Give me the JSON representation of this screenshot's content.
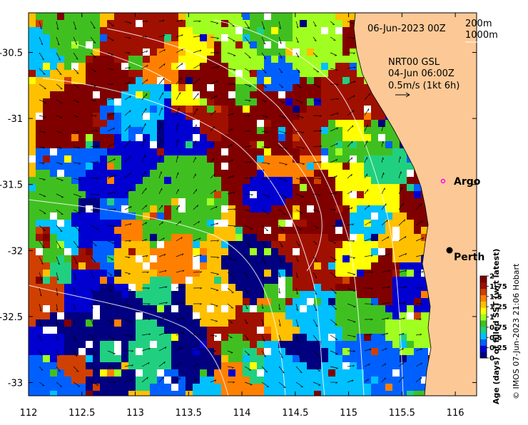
{
  "map": {
    "date_label": "06-Jun-2023 00Z",
    "current_source": "NRT00 GSL",
    "current_time": "04-Jun 06:00Z",
    "vector_scale_label": "0.5m/s (1kt 6h)",
    "bathymetry_labels": [
      "200m",
      "1000m"
    ],
    "lon_range": [
      112,
      116.2
    ],
    "lat_range": [
      -30.2,
      -33.1
    ],
    "lon_ticks": [
      "112",
      "112.5",
      "113",
      "113.5",
      "114",
      "114.5",
      "115",
      "115.5",
      "116"
    ],
    "lat_ticks": [
      "-30.5",
      "-31",
      "-31.5",
      "-32",
      "-32.5",
      "-33"
    ],
    "places": [
      {
        "name": "Argo",
        "lon": 115.85,
        "lat": -31.42,
        "marker": "magenta-ring"
      },
      {
        "name": "Perth",
        "lon": 115.86,
        "lat": -31.95,
        "marker": "black-dot"
      }
    ]
  },
  "colorbar": {
    "title": "Age (days) of filled SST (wrt latest)",
    "ticks": [
      "2",
      "1.75",
      "1.5",
      "1.25",
      "1",
      "0.75",
      "0.5",
      "0.25",
      "0"
    ],
    "colors": [
      "#000080",
      "#0000d0",
      "#0060ff",
      "#00c0ff",
      "#20d080",
      "#40c020",
      "#a0ff20",
      "#ffff00",
      "#ffc000",
      "#ff8000",
      "#d04000",
      "#a01000",
      "#800000"
    ]
  },
  "credit": "© IMOS 07-Jun-2023 21:06 Hobart",
  "colors": {
    "land": "#fcc896",
    "missing": "#ffffff"
  }
}
